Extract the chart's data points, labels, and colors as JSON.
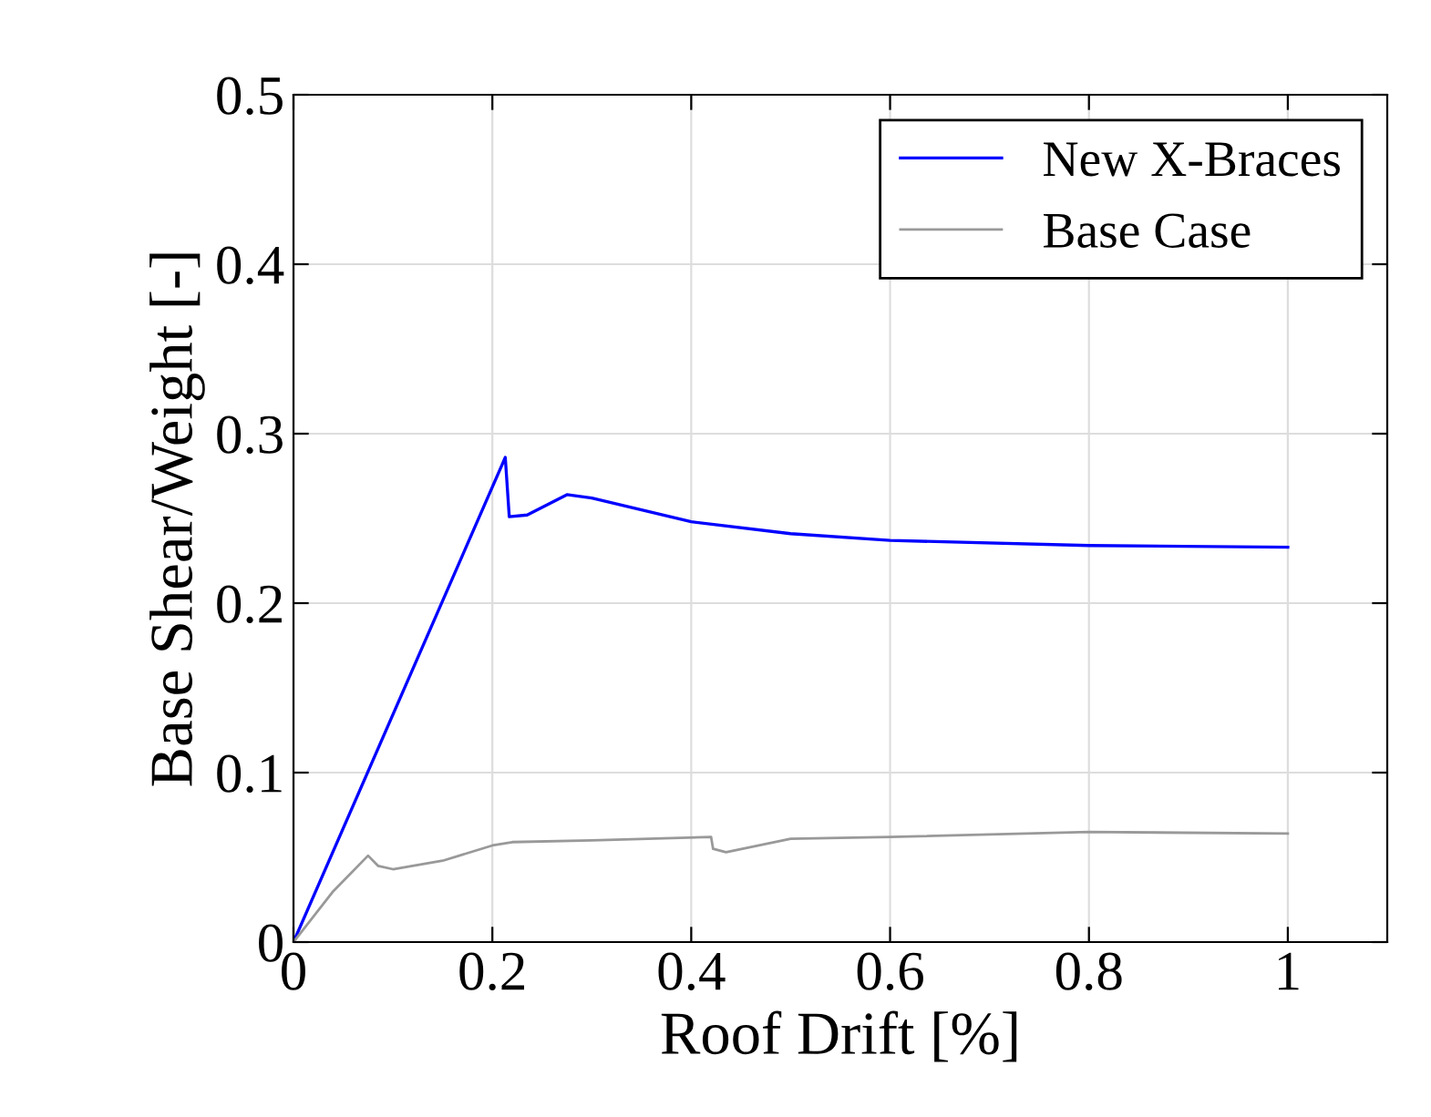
{
  "chart_data": {
    "type": "line",
    "xlabel": "Roof Drift [%]",
    "ylabel": "Base Shear/Weight [-]",
    "xlim": [
      0,
      1.1
    ],
    "ylim": [
      0,
      0.5
    ],
    "xticks": [
      0,
      0.2,
      0.4,
      0.6,
      0.8,
      1
    ],
    "yticks": [
      0,
      0.1,
      0.2,
      0.3,
      0.4,
      0.5
    ],
    "grid": true,
    "legend": "top right",
    "marker": "none",
    "line_style": "solid",
    "series": [
      {
        "name": "New X-Braces",
        "color": "#0000ff",
        "x": [
          0,
          0.213,
          0.217,
          0.235,
          0.275,
          0.3,
          0.4,
          0.5,
          0.6,
          0.8,
          1.0
        ],
        "values": [
          0,
          0.286,
          0.251,
          0.252,
          0.264,
          0.262,
          0.248,
          0.241,
          0.237,
          0.234,
          0.233
        ]
      },
      {
        "name": "Base Case",
        "color": "#999999",
        "x": [
          0,
          0.04,
          0.075,
          0.085,
          0.1,
          0.15,
          0.2,
          0.22,
          0.3,
          0.42,
          0.422,
          0.435,
          0.5,
          0.6,
          0.8,
          1.0
        ],
        "values": [
          0,
          0.03,
          0.051,
          0.045,
          0.043,
          0.048,
          0.057,
          0.059,
          0.06,
          0.062,
          0.055,
          0.053,
          0.061,
          0.062,
          0.065,
          0.064
        ]
      }
    ]
  }
}
